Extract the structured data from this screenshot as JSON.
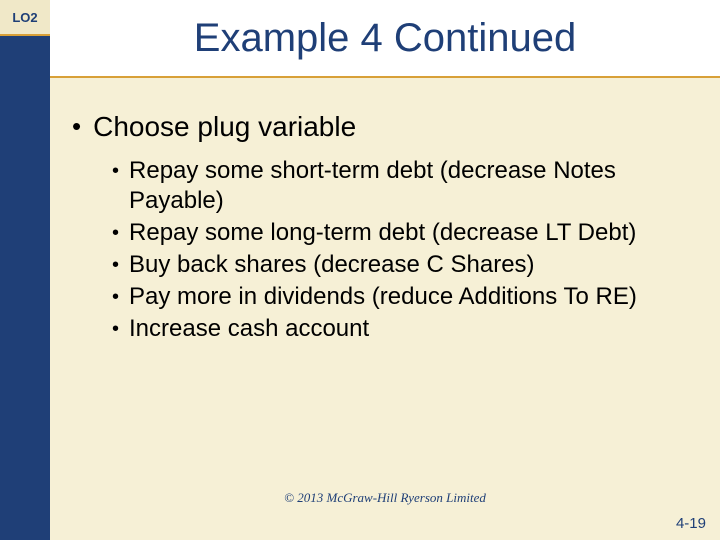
{
  "colors": {
    "lo_bg": "#f0e8c8",
    "lo_text": "#1f3f77",
    "lo_border": "#d8a038",
    "stripe_bg": "#1f3f77",
    "title_bg": "#ffffff",
    "title_text": "#1f3f77",
    "title_border": "#d8a038",
    "body_bg": "#f6f0d6",
    "bullet_text": "#000000",
    "copyright_text": "#1f3f77",
    "pagenum_text": "#1f3f77"
  },
  "lo_label": "LO2",
  "title": "Example 4 Continued",
  "main_bullet": "Choose plug variable",
  "sub_bullets": [
    "Repay some short-term debt (decrease Notes Payable)",
    "Repay some long-term debt (decrease LT Debt)",
    "Buy back shares (decrease C Shares)",
    "Pay more in dividends (reduce Additions To RE)",
    "Increase cash account"
  ],
  "copyright": "© 2013 McGraw-Hill Ryerson Limited",
  "page_number": "4-19"
}
